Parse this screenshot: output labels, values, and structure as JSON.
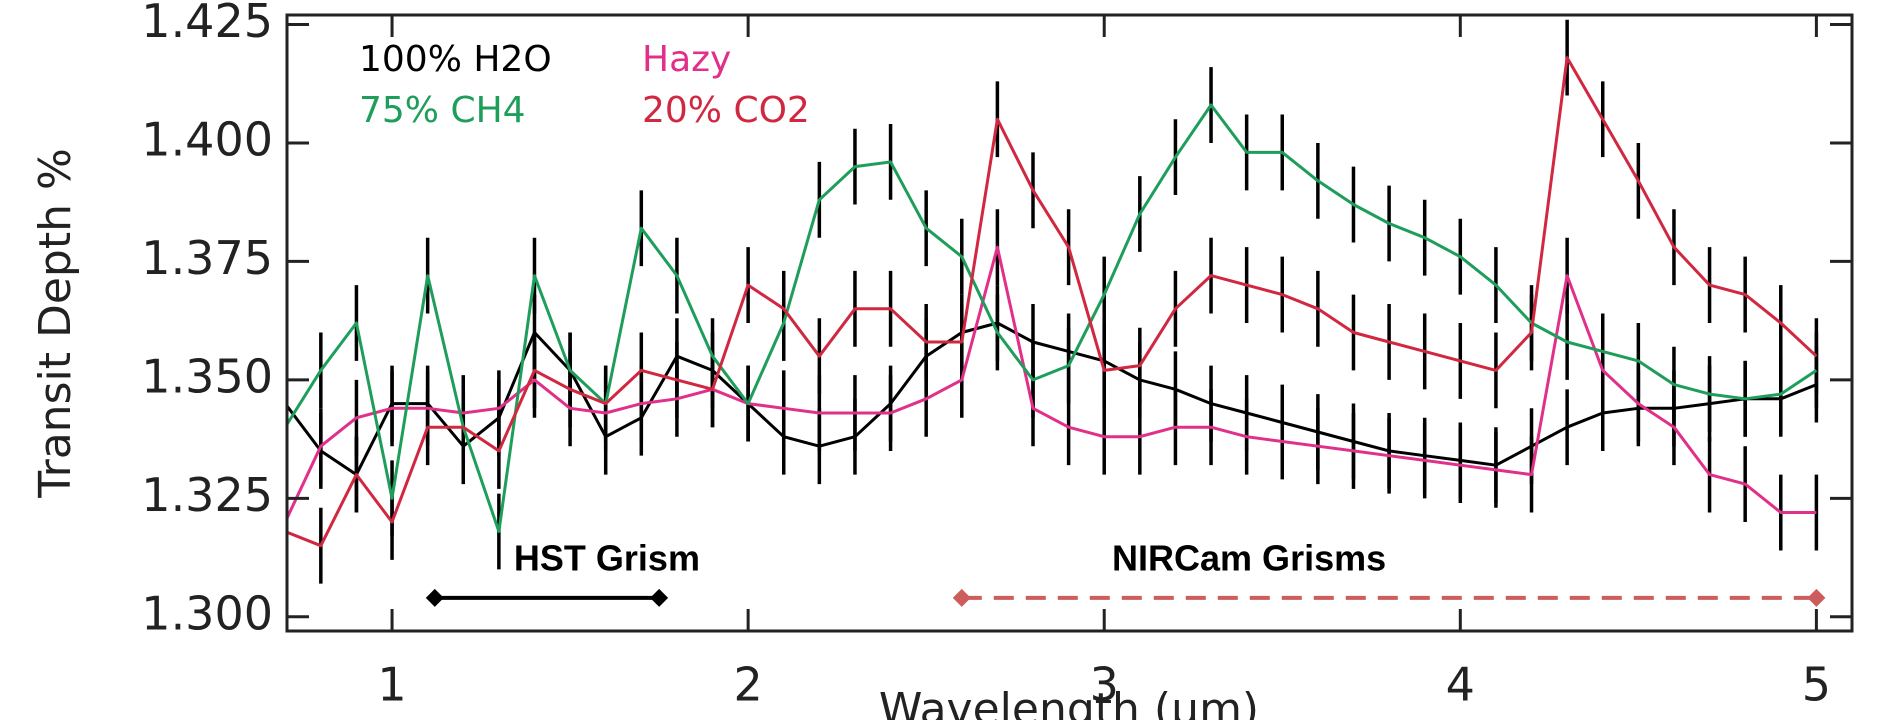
{
  "chart_data": {
    "type": "line",
    "x_label": "Wavelength (μm)",
    "y_label": "Transit Depth %",
    "x": [
      0.7,
      0.8,
      0.9,
      1.0,
      1.1,
      1.2,
      1.3,
      1.4,
      1.5,
      1.6,
      1.7,
      1.8,
      1.9,
      2.0,
      2.1,
      2.2,
      2.3,
      2.4,
      2.5,
      2.6,
      2.7,
      2.8,
      2.9,
      3.0,
      3.1,
      3.2,
      3.3,
      3.4,
      3.5,
      3.6,
      3.7,
      3.8,
      3.9,
      4.0,
      4.1,
      4.2,
      4.3,
      4.4,
      4.5,
      4.6,
      4.7,
      4.8,
      4.9,
      5.0
    ],
    "series": [
      {
        "name": "100% H2O",
        "color": "#000000",
        "yerr": 0.008,
        "values": [
          1.345,
          1.335,
          1.33,
          1.345,
          1.345,
          1.336,
          1.342,
          1.36,
          1.352,
          1.338,
          1.342,
          1.355,
          1.352,
          1.345,
          1.338,
          1.336,
          1.338,
          1.345,
          1.355,
          1.36,
          1.362,
          1.358,
          1.356,
          1.354,
          1.35,
          1.348,
          1.345,
          1.343,
          1.341,
          1.339,
          1.337,
          1.335,
          1.334,
          1.333,
          1.332,
          1.336,
          1.34,
          1.343,
          1.344,
          1.344,
          1.345,
          1.346,
          1.346,
          1.349
        ]
      },
      {
        "name": "Hazy",
        "color": "#e0308a",
        "yerr": 0.008,
        "values": [
          1.32,
          1.336,
          1.342,
          1.344,
          1.344,
          1.343,
          1.344,
          1.35,
          1.344,
          1.343,
          1.345,
          1.346,
          1.348,
          1.345,
          1.344,
          1.343,
          1.343,
          1.343,
          1.346,
          1.35,
          1.378,
          1.344,
          1.34,
          1.338,
          1.338,
          1.34,
          1.34,
          1.338,
          1.337,
          1.336,
          1.335,
          1.334,
          1.333,
          1.332,
          1.331,
          1.33,
          1.372,
          1.352,
          1.345,
          1.34,
          1.33,
          1.328,
          1.322,
          1.322
        ]
      },
      {
        "name": "75% CH4",
        "color": "#1e9e5a",
        "yerr": 0.008,
        "values": [
          1.34,
          1.352,
          1.362,
          1.325,
          1.372,
          1.34,
          1.318,
          1.372,
          1.352,
          1.345,
          1.382,
          1.372,
          1.355,
          1.345,
          1.362,
          1.388,
          1.395,
          1.396,
          1.382,
          1.376,
          1.36,
          1.35,
          1.353,
          1.368,
          1.385,
          1.397,
          1.408,
          1.398,
          1.398,
          1.392,
          1.387,
          1.383,
          1.38,
          1.376,
          1.37,
          1.362,
          1.358,
          1.356,
          1.354,
          1.349,
          1.347,
          1.346,
          1.347,
          1.352
        ]
      },
      {
        "name": "20% CO2",
        "color": "#d02840",
        "yerr": 0.008,
        "values": [
          1.318,
          1.315,
          1.33,
          1.32,
          1.34,
          1.34,
          1.335,
          1.352,
          1.348,
          1.345,
          1.352,
          1.35,
          1.348,
          1.37,
          1.365,
          1.355,
          1.365,
          1.365,
          1.358,
          1.358,
          1.405,
          1.39,
          1.378,
          1.352,
          1.353,
          1.365,
          1.372,
          1.37,
          1.368,
          1.365,
          1.36,
          1.358,
          1.356,
          1.354,
          1.352,
          1.36,
          1.418,
          1.405,
          1.392,
          1.378,
          1.37,
          1.368,
          1.362,
          1.355
        ]
      }
    ],
    "errorbar_color": "#000000",
    "xlim": [
      0.705,
      5.1
    ],
    "ylim": [
      1.297,
      1.427
    ],
    "xticks": [
      1,
      2,
      3,
      4,
      5
    ],
    "yticks": [
      {
        "value": 1.3,
        "label": "1.300"
      },
      1.325,
      {
        "value": 1.35,
        "label": "1.350"
      },
      1.375,
      {
        "value": 1.4,
        "label": "1.400"
      },
      1.425
    ],
    "annotations": [
      {
        "text": "HST Grism",
        "x": [
          1.12,
          1.75
        ],
        "y": 1.304,
        "color": "#000000",
        "dashed": false
      },
      {
        "text": "NIRCam Grisms",
        "x": [
          2.6,
          5.0
        ],
        "y": 1.304,
        "color": "#cd5c5c",
        "dashed": true
      }
    ]
  }
}
